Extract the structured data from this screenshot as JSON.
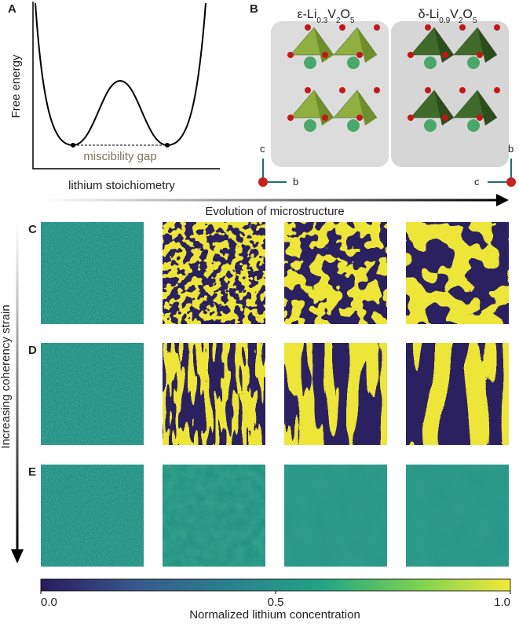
{
  "panel_a": {
    "label": "A",
    "y_axis": "Free energy",
    "annotation": "miscibility gap",
    "x_axis": "lithium stoichiometry"
  },
  "panel_b": {
    "label": "B",
    "structures": [
      {
        "formula": [
          "ε-Li",
          "0.3",
          "V",
          "2",
          "O",
          "5"
        ],
        "axes": [
          "c",
          "b"
        ]
      },
      {
        "formula": [
          "δ-Li",
          "0.9",
          "V",
          "2",
          "O",
          "5"
        ],
        "axes": [
          "b",
          "c"
        ]
      }
    ]
  },
  "evolution_label": "Evolution of microstructure",
  "strain_label": "Increasing coherency strain",
  "rows": [
    {
      "label": "C"
    },
    {
      "label": "D"
    },
    {
      "label": "E"
    }
  ],
  "colorbar": {
    "title": "Normalized lithium concentration",
    "range": [
      0,
      1
    ],
    "ticks": [
      {
        "value": 0,
        "label": "0.0"
      },
      0.5,
      {
        "value": 1,
        "label": "1.0"
      }
    ]
  }
}
